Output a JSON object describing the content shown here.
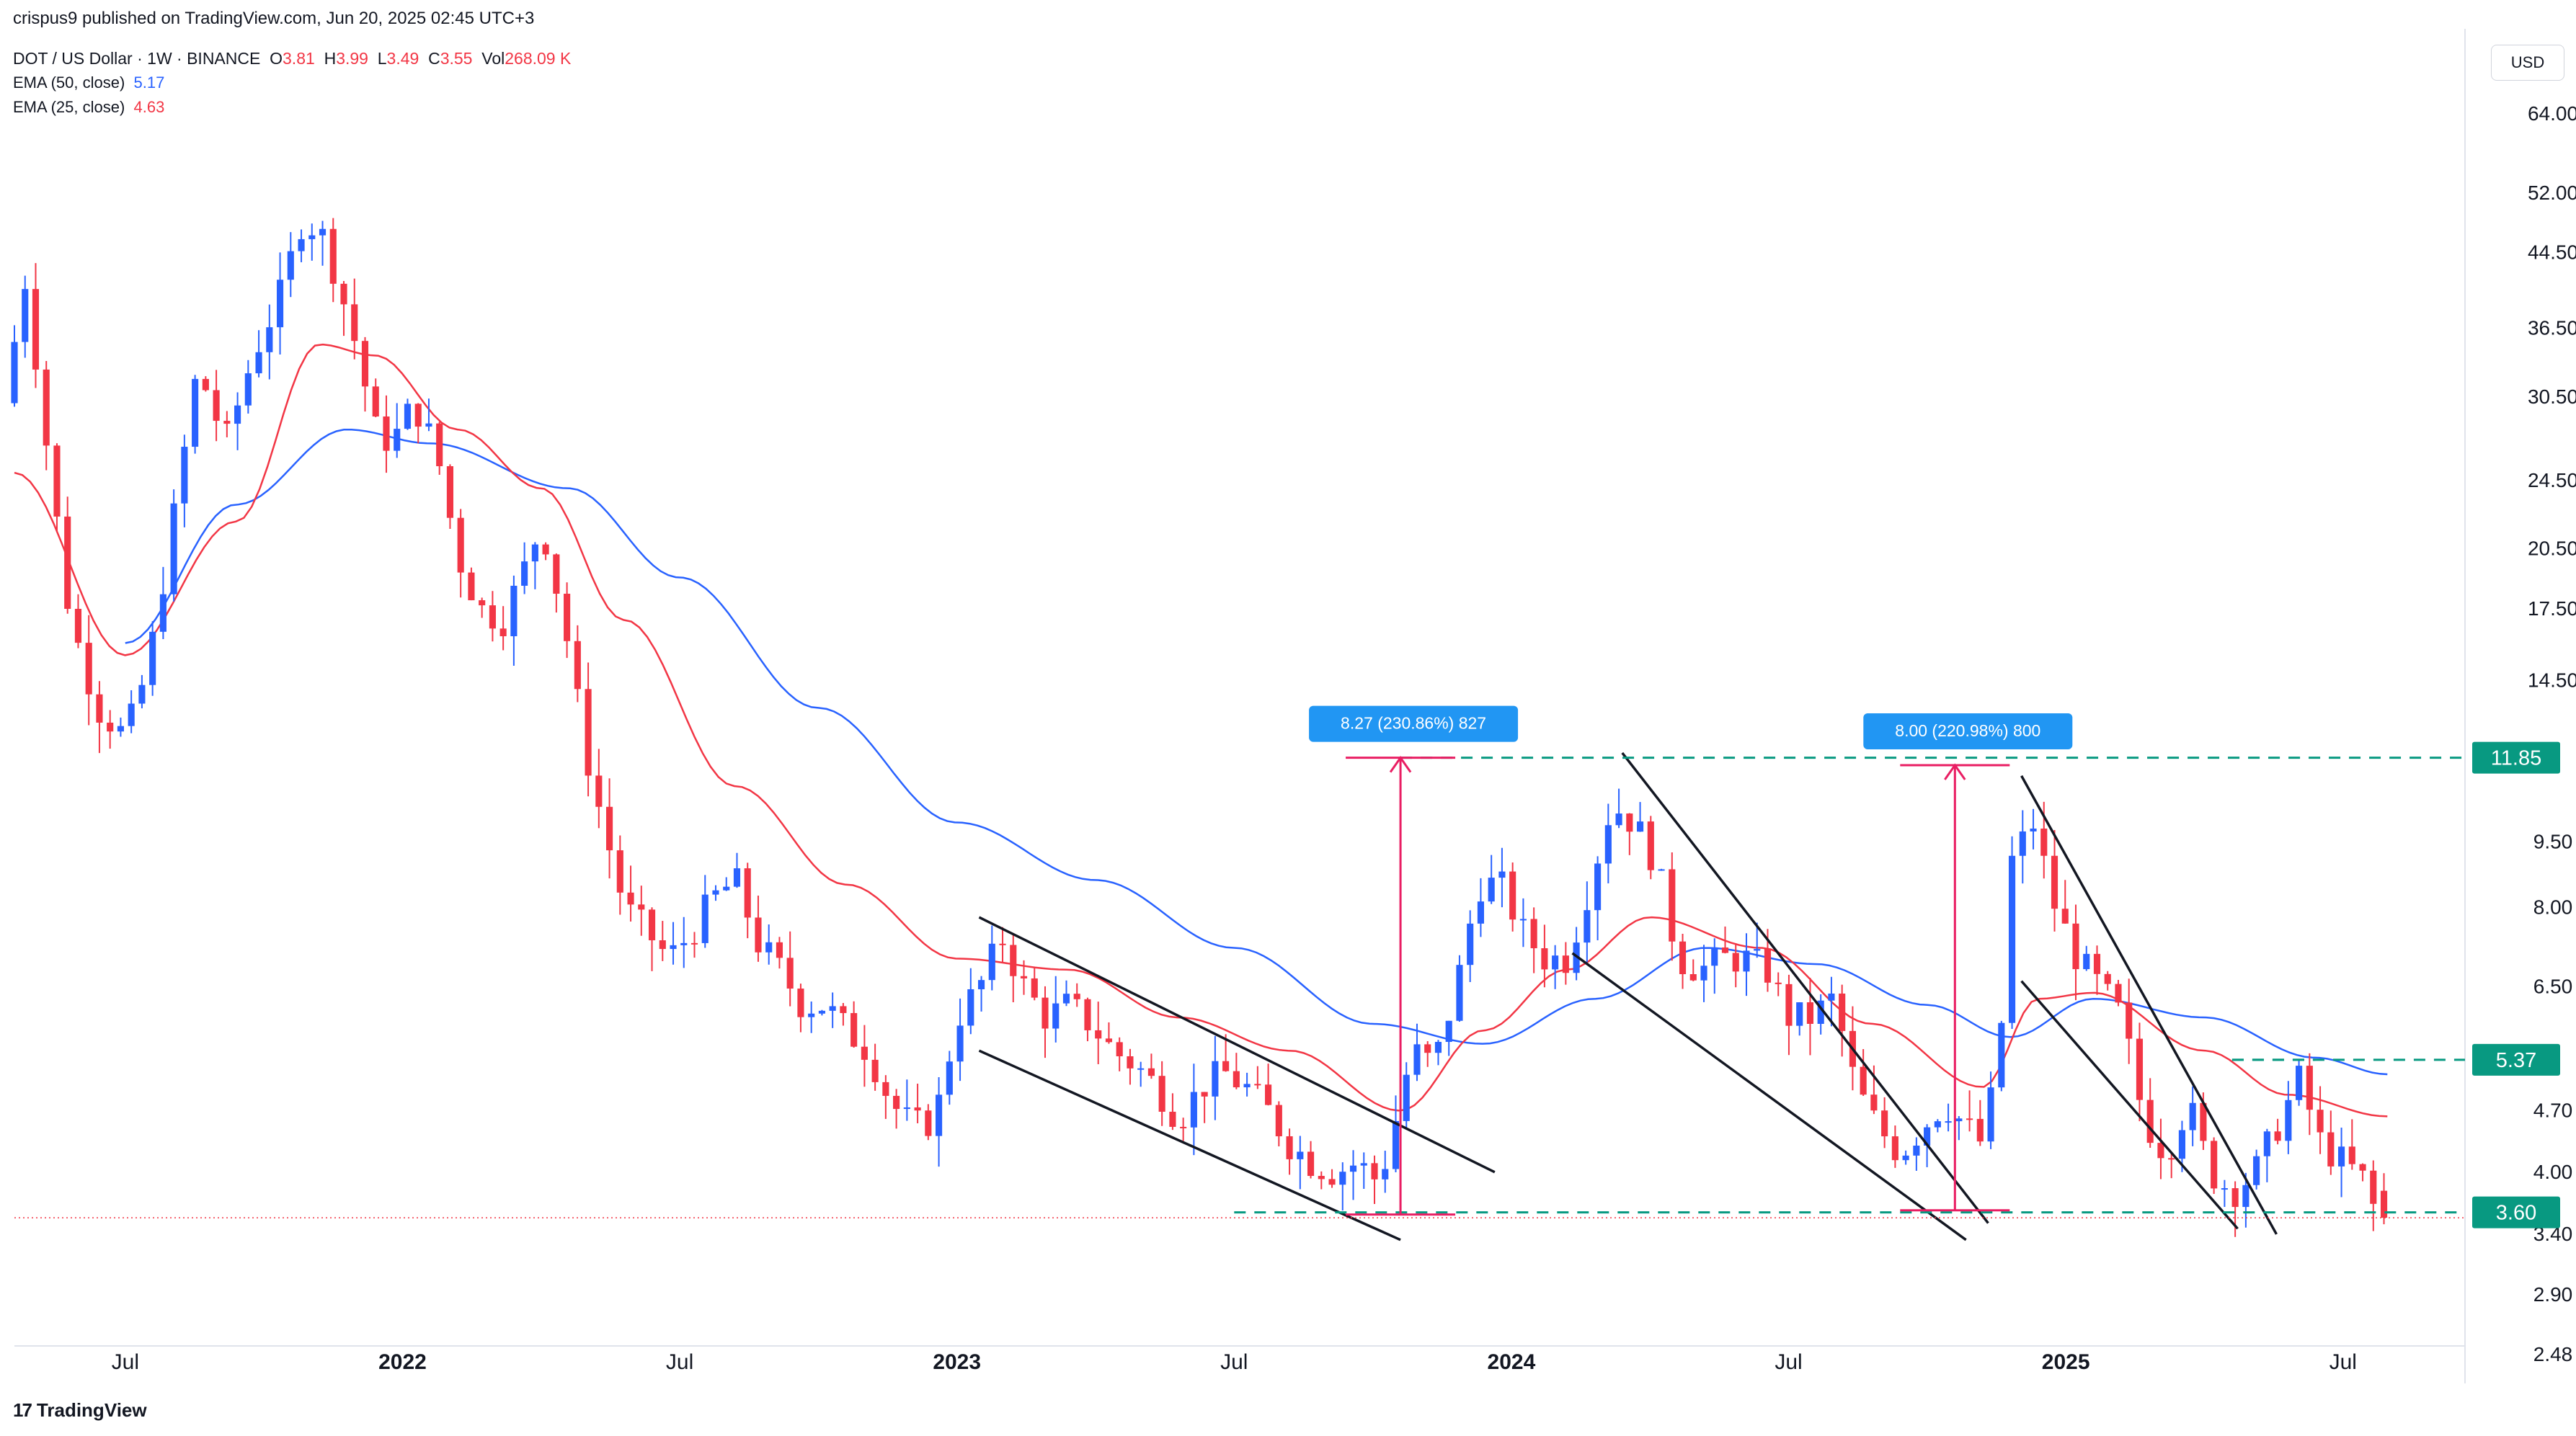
{
  "header": {
    "publisher_line": "crispus9 published on TradingView.com, Jun 20, 2025 02:45 UTC+3",
    "symbol": "DOT / US Dollar · 1W · BINANCE",
    "ohlc": {
      "o_label": "O",
      "o": "3.81",
      "h_label": "H",
      "h": "3.99",
      "l_label": "L",
      "l": "3.49",
      "c_label": "C",
      "c": "3.55",
      "vol_label": "Vol",
      "vol": "268.09 K"
    },
    "ema50": {
      "label": "EMA (50, close)",
      "value": "5.17"
    },
    "ema25": {
      "label": "EMA (25, close)",
      "value": "4.63"
    }
  },
  "currency": "USD",
  "footer": {
    "logo_text": "TradingView"
  },
  "colors": {
    "up": "#2962ff",
    "down": "#f23645",
    "ema50": "#2962ff",
    "ema25": "#f23645",
    "dashed": "#089981",
    "measure": "#e91e63",
    "label_bg": "#2196f3"
  },
  "chart_data": {
    "type": "candlestick",
    "title": "DOT / US Dollar · 1W · BINANCE",
    "y_scale": "log",
    "ylim": [
      2.3,
      80
    ],
    "y_ticks": [
      "64.00",
      "52.00",
      "44.50",
      "36.50",
      "30.50",
      "24.50",
      "20.50",
      "17.50",
      "14.50",
      "11.85",
      "9.50",
      "8.00",
      "6.50",
      "5.37",
      "4.70",
      "4.00",
      "3.60",
      "3.40",
      "2.90",
      "2.48"
    ],
    "y_tick_values": [
      64,
      52,
      44.5,
      36.5,
      30.5,
      24.5,
      20.5,
      17.5,
      14.5,
      11.85,
      9.5,
      8.0,
      6.5,
      5.37,
      4.7,
      4.0,
      3.6,
      3.4,
      2.9,
      2.48
    ],
    "highlighted_levels": [
      {
        "value": 11.85,
        "label": "11.85"
      },
      {
        "value": 5.37,
        "label": "5.37"
      },
      {
        "value": 3.6,
        "label": "3.60"
      }
    ],
    "x_ticks": [
      "Jul",
      "2022",
      "Jul",
      "2023",
      "Jul",
      "2024",
      "Jul",
      "2025",
      "Jul"
    ],
    "x_tick_dates": [
      2021.5,
      2022.0,
      2022.5,
      2023.0,
      2023.5,
      2024.0,
      2024.5,
      2025.0,
      2025.5
    ],
    "xlim": [
      2021.3,
      2025.72
    ],
    "anchors": [
      [
        2021.3,
        30.0
      ],
      [
        2021.34,
        42.0
      ],
      [
        2021.38,
        26.0
      ],
      [
        2021.42,
        17.0
      ],
      [
        2021.47,
        13.5
      ],
      [
        2021.52,
        12.5
      ],
      [
        2021.56,
        15.0
      ],
      [
        2021.6,
        21.0
      ],
      [
        2021.65,
        33.0
      ],
      [
        2021.7,
        27.0
      ],
      [
        2021.75,
        34.0
      ],
      [
        2021.8,
        40.0
      ],
      [
        2021.84,
        49.0
      ],
      [
        2021.88,
        46.0
      ],
      [
        2021.93,
        36.0
      ],
      [
        2021.97,
        28.0
      ],
      [
        2022.0,
        27.0
      ],
      [
        2022.04,
        30.0
      ],
      [
        2022.08,
        26.5
      ],
      [
        2022.12,
        20.0
      ],
      [
        2022.16,
        17.5
      ],
      [
        2022.2,
        17.0
      ],
      [
        2022.24,
        19.5
      ],
      [
        2022.27,
        22.0
      ],
      [
        2022.31,
        17.0
      ],
      [
        2022.35,
        12.0
      ],
      [
        2022.38,
        10.0
      ],
      [
        2022.42,
        8.0
      ],
      [
        2022.46,
        7.5
      ],
      [
        2022.5,
        7.0
      ],
      [
        2022.54,
        7.5
      ],
      [
        2022.58,
        8.2
      ],
      [
        2022.62,
        8.6
      ],
      [
        2022.66,
        7.3
      ],
      [
        2022.7,
        6.8
      ],
      [
        2022.74,
        6.2
      ],
      [
        2022.78,
        6.2
      ],
      [
        2022.82,
        5.8
      ],
      [
        2022.86,
        5.5
      ],
      [
        2022.9,
        4.8
      ],
      [
        2022.94,
        4.5
      ],
      [
        2022.98,
        4.6
      ],
      [
        2023.02,
        6.0
      ],
      [
        2023.06,
        6.5
      ],
      [
        2023.1,
        7.4
      ],
      [
        2023.14,
        6.5
      ],
      [
        2023.18,
        6.0
      ],
      [
        2023.22,
        6.2
      ],
      [
        2023.26,
        5.9
      ],
      [
        2023.3,
        5.5
      ],
      [
        2023.34,
        5.3
      ],
      [
        2023.38,
        5.0
      ],
      [
        2023.42,
        4.6
      ],
      [
        2023.46,
        5.0
      ],
      [
        2023.5,
        5.2
      ],
      [
        2023.54,
        5.0
      ],
      [
        2023.58,
        4.7
      ],
      [
        2023.62,
        4.3
      ],
      [
        2023.66,
        4.1
      ],
      [
        2023.7,
        4.0
      ],
      [
        2023.74,
        4.1
      ],
      [
        2023.78,
        3.9
      ],
      [
        2023.8,
        4.3
      ],
      [
        2023.84,
        5.5
      ],
      [
        2023.88,
        5.3
      ],
      [
        2023.92,
        6.5
      ],
      [
        2023.96,
        8.5
      ],
      [
        2024.0,
        8.5
      ],
      [
        2024.04,
        7.5
      ],
      [
        2024.08,
        7.0
      ],
      [
        2024.12,
        7.0
      ],
      [
        2024.16,
        8.5
      ],
      [
        2024.2,
        10.5
      ],
      [
        2024.24,
        10.0
      ],
      [
        2024.28,
        9.0
      ],
      [
        2024.32,
        7.0
      ],
      [
        2024.36,
        6.8
      ],
      [
        2024.4,
        7.0
      ],
      [
        2024.44,
        7.0
      ],
      [
        2024.48,
        6.8
      ],
      [
        2024.52,
        6.0
      ],
      [
        2024.56,
        6.0
      ],
      [
        2024.6,
        6.3
      ],
      [
        2024.64,
        5.0
      ],
      [
        2024.68,
        4.5
      ],
      [
        2024.72,
        4.2
      ],
      [
        2024.76,
        4.5
      ],
      [
        2024.8,
        4.8
      ],
      [
        2024.84,
        4.5
      ],
      [
        2024.87,
        4.3
      ],
      [
        2024.9,
        5.5
      ],
      [
        2024.92,
        9.0
      ],
      [
        2024.96,
        10.0
      ],
      [
        2025.0,
        8.0
      ],
      [
        2025.04,
        7.0
      ],
      [
        2025.08,
        6.5
      ],
      [
        2025.12,
        6.0
      ],
      [
        2025.16,
        4.6
      ],
      [
        2025.2,
        4.2
      ],
      [
        2025.24,
        4.8
      ],
      [
        2025.28,
        4.0
      ],
      [
        2025.32,
        3.8
      ],
      [
        2025.36,
        4.0
      ],
      [
        2025.4,
        4.5
      ],
      [
        2025.44,
        5.1
      ],
      [
        2025.48,
        4.3
      ],
      [
        2025.52,
        4.1
      ],
      [
        2025.56,
        3.9
      ],
      [
        2025.58,
        3.55
      ]
    ],
    "last_candle": {
      "open": 3.81,
      "high": 3.99,
      "low": 3.49,
      "close": 3.55
    },
    "series": [
      {
        "name": "EMA (50, close)",
        "color": "#2962ff",
        "points": [
          [
            2021.5,
            16.0
          ],
          [
            2021.7,
            23.0
          ],
          [
            2021.9,
            28.0
          ],
          [
            2022.05,
            27.0
          ],
          [
            2022.3,
            24.0
          ],
          [
            2022.5,
            19.0
          ],
          [
            2022.75,
            13.5
          ],
          [
            2023.0,
            10.0
          ],
          [
            2023.25,
            8.6
          ],
          [
            2023.5,
            7.2
          ],
          [
            2023.75,
            5.9
          ],
          [
            2023.95,
            5.6
          ],
          [
            2024.15,
            6.3
          ],
          [
            2024.35,
            7.2
          ],
          [
            2024.55,
            6.9
          ],
          [
            2024.75,
            6.2
          ],
          [
            2024.9,
            5.7
          ],
          [
            2025.05,
            6.3
          ],
          [
            2025.25,
            6.0
          ],
          [
            2025.45,
            5.4
          ],
          [
            2025.58,
            5.17
          ]
        ]
      },
      {
        "name": "EMA (25, close)",
        "color": "#f23645",
        "points": [
          [
            2021.3,
            25.0
          ],
          [
            2021.5,
            15.5
          ],
          [
            2021.7,
            22.0
          ],
          [
            2021.85,
            35.0
          ],
          [
            2021.95,
            34.0
          ],
          [
            2022.1,
            28.0
          ],
          [
            2022.25,
            24.0
          ],
          [
            2022.4,
            17.0
          ],
          [
            2022.6,
            11.0
          ],
          [
            2022.8,
            8.5
          ],
          [
            2023.0,
            7.0
          ],
          [
            2023.2,
            6.8
          ],
          [
            2023.4,
            6.0
          ],
          [
            2023.6,
            5.5
          ],
          [
            2023.8,
            4.7
          ],
          [
            2023.95,
            5.8
          ],
          [
            2024.1,
            6.8
          ],
          [
            2024.25,
            7.8
          ],
          [
            2024.45,
            7.2
          ],
          [
            2024.65,
            5.9
          ],
          [
            2024.85,
            5.0
          ],
          [
            2024.95,
            6.3
          ],
          [
            2025.05,
            6.4
          ],
          [
            2025.25,
            5.5
          ],
          [
            2025.4,
            4.9
          ],
          [
            2025.58,
            4.63
          ]
        ]
      }
    ],
    "trendlines": [
      [
        [
          2023.04,
          7.8
        ],
        [
          2023.97,
          4.0
        ]
      ],
      [
        [
          2023.04,
          5.5
        ],
        [
          2023.8,
          3.35
        ]
      ],
      [
        [
          2024.2,
          12.0
        ],
        [
          2024.86,
          3.5
        ]
      ],
      [
        [
          2024.11,
          7.1
        ],
        [
          2024.82,
          3.35
        ]
      ],
      [
        [
          2024.92,
          11.3
        ],
        [
          2025.38,
          3.4
        ]
      ],
      [
        [
          2024.92,
          6.6
        ],
        [
          2025.31,
          3.45
        ]
      ],
      [
        [
          2025.3,
          5.37
        ],
        [
          2025.45,
          5.37
        ]
      ]
    ],
    "measurements": [
      {
        "label": "8.27 (230.86%) 827",
        "from_date": 2023.8,
        "from_price": 3.58,
        "to_price": 11.85
      },
      {
        "label": "8.00 (220.98%) 800",
        "from_date": 2024.8,
        "from_price": 3.62,
        "to_price": 11.62
      }
    ]
  }
}
